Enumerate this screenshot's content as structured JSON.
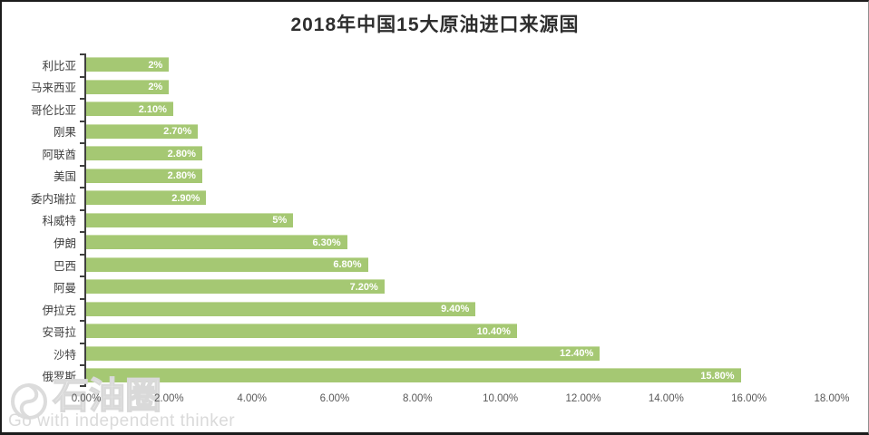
{
  "title": "2018年中国15大原油进口来源国",
  "watermark": {
    "logo_icon": "swirl-circle-logo",
    "brand": "石油圈",
    "tagline": "Go with independent thinker"
  },
  "colors": {
    "bar": "#a5c873",
    "bar_edge": "#c9dda8",
    "bar_label": "#ffffff",
    "axis_line": "#404040",
    "category_label": "#3f3f3f",
    "x_tick_label": "#595959",
    "title_text": "#2e2e2e",
    "watermark_gray": "#dadada"
  },
  "chart_data": {
    "type": "bar",
    "orientation": "horizontal",
    "title": "2018年中国15大原油进口来源国",
    "categories": [
      "利比亚",
      "马来西亚",
      "哥伦比亚",
      "刚果",
      "阿联酋",
      "美国",
      "委内瑞拉",
      "科威特",
      "伊朗",
      "巴西",
      "阿曼",
      "伊拉克",
      "安哥拉",
      "沙特",
      "俄罗斯"
    ],
    "values": [
      2,
      2,
      2.1,
      2.7,
      2.8,
      2.8,
      2.9,
      5,
      6.3,
      6.8,
      7.2,
      9.4,
      10.4,
      12.4,
      15.8
    ],
    "value_labels": [
      "2%",
      "2%",
      "2.10%",
      "2.70%",
      "2.80%",
      "2.80%",
      "2.90%",
      "5%",
      "6.30%",
      "6.80%",
      "7.20%",
      "9.40%",
      "10.40%",
      "12.40%",
      "15.80%"
    ],
    "x_ticks": [
      "0.00%",
      "2.00%",
      "4.00%",
      "6.00%",
      "8.00%",
      "10.00%",
      "12.00%",
      "14.00%",
      "16.00%",
      "18.00%"
    ],
    "xlim": [
      0,
      18
    ],
    "xlabel": "",
    "ylabel": "",
    "grid": false,
    "legend": "none",
    "value_labels_position": "inside-end"
  }
}
